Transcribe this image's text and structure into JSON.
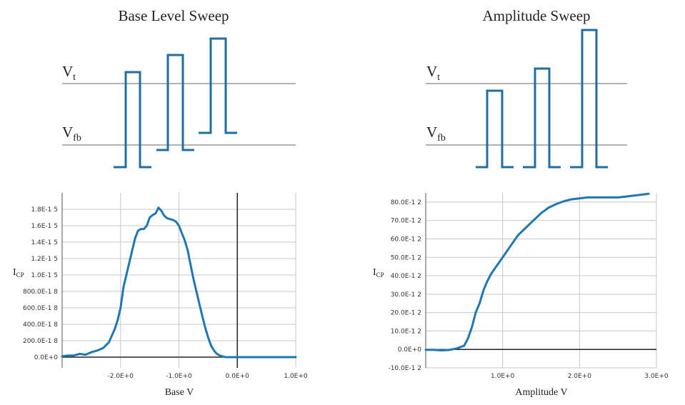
{
  "panels": [
    {
      "id": "base",
      "title": "Base Level Sweep",
      "ref_labels": [
        {
          "main": "V",
          "sub": "t"
        },
        {
          "main": "V",
          "sub": "fb"
        }
      ],
      "pulse_color": "#1f6fa3"
    },
    {
      "id": "amp",
      "title": "Amplitude Sweep",
      "ref_labels": [
        {
          "main": "V",
          "sub": "t"
        },
        {
          "main": "V",
          "sub": "fb"
        }
      ],
      "pulse_color": "#1f6fa3"
    }
  ],
  "chart_data": [
    {
      "type": "line",
      "xlabel": "Base   V",
      "ylabel_main": "I",
      "ylabel_sub": "CP",
      "xlim": [
        -3.0,
        1.0
      ],
      "ylim": [
        -1.3e-16,
        2e-15
      ],
      "x_ticks": [
        {
          "v": -2.0,
          "label": "-2.0E+0"
        },
        {
          "v": -1.0,
          "label": "-1.0E+0"
        },
        {
          "v": 0.0,
          "label": "0.0E+0"
        },
        {
          "v": 1.0,
          "label": "1.0E+0"
        }
      ],
      "y_ticks": [
        {
          "v": 0,
          "label": "0.0E+0"
        },
        {
          "v": 2e-16,
          "label": "200.0E-1 8"
        },
        {
          "v": 4e-16,
          "label": "400.0E-1 8"
        },
        {
          "v": 6e-16,
          "label": "600.0E-1 8"
        },
        {
          "v": 8e-16,
          "label": "800.0E-1 8"
        },
        {
          "v": 1e-15,
          "label": "1.0E-1 5"
        },
        {
          "v": 1.2e-15,
          "label": "1.2E-1 5"
        },
        {
          "v": 1.4e-15,
          "label": "1.4E-1 5"
        },
        {
          "v": 1.6e-15,
          "label": "1.6E-1 5"
        },
        {
          "v": 1.8e-15,
          "label": "1.8E-1 5"
        }
      ],
      "grid": true,
      "series": [
        {
          "color": "#1f77b4",
          "x": [
            -3.0,
            -2.9,
            -2.8,
            -2.7,
            -2.6,
            -2.5,
            -2.4,
            -2.3,
            -2.2,
            -2.1,
            -2.05,
            -2.0,
            -1.95,
            -1.9,
            -1.85,
            -1.8,
            -1.75,
            -1.7,
            -1.65,
            -1.6,
            -1.55,
            -1.5,
            -1.45,
            -1.4,
            -1.35,
            -1.3,
            -1.25,
            -1.2,
            -1.15,
            -1.1,
            -1.05,
            -1.0,
            -0.95,
            -0.9,
            -0.85,
            -0.8,
            -0.75,
            -0.7,
            -0.65,
            -0.6,
            -0.55,
            -0.5,
            -0.45,
            -0.4,
            -0.35,
            -0.3,
            -0.25,
            -0.2,
            -0.15,
            -0.1,
            -0.05,
            0.0,
            0.1,
            0.2,
            0.4,
            0.6,
            0.8,
            1.0
          ],
          "y": [
            1e-17,
            2e-17,
            2e-17,
            4e-17,
            3e-17,
            6e-17,
            8e-17,
            1.1e-16,
            1.8e-16,
            3.4e-16,
            4.5e-16,
            6e-16,
            8.5e-16,
            1e-15,
            1.15e-15,
            1.3e-15,
            1.45e-15,
            1.54e-15,
            1.56e-15,
            1.56e-15,
            1.6e-15,
            1.7e-15,
            1.73e-15,
            1.75e-15,
            1.82e-15,
            1.78e-15,
            1.72e-15,
            1.69e-15,
            1.68e-15,
            1.67e-15,
            1.65e-15,
            1.6e-15,
            1.51e-15,
            1.42e-15,
            1.3e-15,
            1.12e-15,
            9.5e-16,
            8e-16,
            6.5e-16,
            5e-16,
            3.6e-16,
            2.4e-16,
            1.4e-16,
            8e-17,
            4e-17,
            2e-17,
            1e-17,
            0,
            0,
            0,
            0,
            0,
            0,
            0,
            0,
            0,
            0,
            0
          ]
        }
      ]
    },
    {
      "type": "line",
      "xlabel": "Amplitude    V",
      "ylabel_main": "I",
      "ylabel_sub": "CP",
      "xlim": [
        0,
        3.0
      ],
      "ylim": [
        -1e-11,
        8.5e-11
      ],
      "x_ticks": [
        {
          "v": 1.0,
          "label": "1.0E+0"
        },
        {
          "v": 2.0,
          "label": "2.0E+0"
        },
        {
          "v": 3.0,
          "label": "3.0E+0"
        }
      ],
      "y_ticks": [
        {
          "v": -1e-11,
          "label": "-10.0E-1 2"
        },
        {
          "v": 0,
          "label": "0.0E+0"
        },
        {
          "v": 1e-11,
          "label": "10.0E-1 2"
        },
        {
          "v": 2e-11,
          "label": "20.0E-1 2"
        },
        {
          "v": 3e-11,
          "label": "30.0E-1 2"
        },
        {
          "v": 4e-11,
          "label": "40.0E-1 2"
        },
        {
          "v": 5e-11,
          "label": "50.0E-1 2"
        },
        {
          "v": 6e-11,
          "label": "60.0E-1 2"
        },
        {
          "v": 7e-11,
          "label": "70.0E-1 2"
        },
        {
          "v": 8e-11,
          "label": "80.0E-1 2"
        }
      ],
      "grid": true,
      "series": [
        {
          "color": "#1f77b4",
          "x": [
            0.0,
            0.1,
            0.2,
            0.3,
            0.4,
            0.5,
            0.55,
            0.6,
            0.65,
            0.7,
            0.75,
            0.8,
            0.85,
            0.9,
            0.95,
            1.0,
            1.1,
            1.2,
            1.3,
            1.4,
            1.5,
            1.6,
            1.7,
            1.8,
            1.9,
            2.0,
            2.1,
            2.2,
            2.3,
            2.4,
            2.5,
            2.6,
            2.7,
            2.8,
            2.9
          ],
          "y": [
            -2e-13,
            -2e-13,
            -5e-13,
            -3e-13,
            5e-13,
            2e-12,
            6e-12,
            1.2e-11,
            2e-11,
            2.5e-11,
            3.2e-11,
            3.7e-11,
            4.1e-11,
            4.4e-11,
            4.7e-11,
            5e-11,
            5.6e-11,
            6.2e-11,
            6.6e-11,
            7e-11,
            7.4e-11,
            7.7e-11,
            7.9e-11,
            8.05e-11,
            8.15e-11,
            8.2e-11,
            8.25e-11,
            8.25e-11,
            8.25e-11,
            8.25e-11,
            8.25e-11,
            8.3e-11,
            8.35e-11,
            8.4e-11,
            8.45e-11
          ]
        }
      ]
    }
  ]
}
